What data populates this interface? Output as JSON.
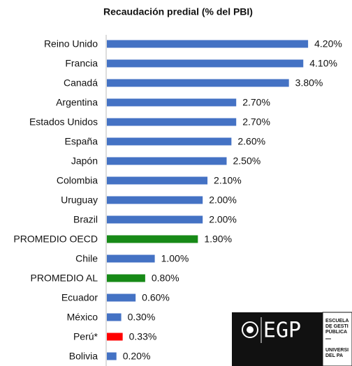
{
  "chart_data": {
    "type": "bar",
    "orientation": "horizontal",
    "title": "Recaudación predial (% del PBI)",
    "categories": [
      "Reino Unido",
      "Francia",
      "Canadá",
      "Argentina",
      "Estados Unidos",
      "España",
      "Japón",
      "Colombia",
      "Uruguay",
      "Brazil",
      "PROMEDIO OECD",
      "Chile",
      "PROMEDIO AL",
      "Ecuador",
      "México",
      "Perú*",
      "Bolivia"
    ],
    "values": [
      4.2,
      4.1,
      3.8,
      2.7,
      2.7,
      2.6,
      2.5,
      2.1,
      2.0,
      2.0,
      1.9,
      1.0,
      0.8,
      0.6,
      0.3,
      0.33,
      0.2
    ],
    "value_labels": [
      "4.20%",
      "4.10%",
      "3.80%",
      "2.70%",
      "2.70%",
      "2.60%",
      "2.50%",
      "2.10%",
      "2.00%",
      "2.00%",
      "1.90%",
      "1.00%",
      "0.80%",
      "0.60%",
      "0.30%",
      "0.33%",
      "0.20%"
    ],
    "colors": [
      "#4472c4",
      "#4472c4",
      "#4472c4",
      "#4472c4",
      "#4472c4",
      "#4472c4",
      "#4472c4",
      "#4472c4",
      "#4472c4",
      "#4472c4",
      "#178a17",
      "#4472c4",
      "#178a17",
      "#4472c4",
      "#4472c4",
      "#ff0000",
      "#4472c4"
    ],
    "xlim": [
      0,
      5
    ]
  },
  "logo": {
    "mark": "EGP",
    "lines": [
      "ESCUELA",
      "DE GESTI",
      "PÚBLICA",
      "UNIVERSI",
      "DEL PA"
    ]
  }
}
